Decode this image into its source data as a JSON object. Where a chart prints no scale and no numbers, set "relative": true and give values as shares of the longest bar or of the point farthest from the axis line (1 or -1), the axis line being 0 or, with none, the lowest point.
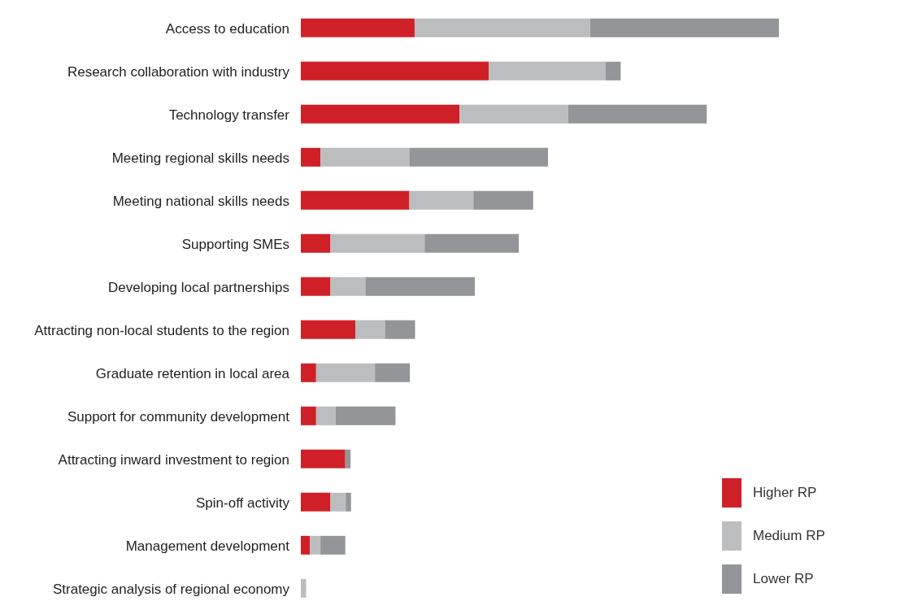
{
  "chart_data": {
    "type": "bar",
    "orientation": "horizontal",
    "stacked": true,
    "relative": true,
    "legend": "bottom right",
    "grid": false,
    "categories": [
      "Access to education",
      "Research collaboration with industry",
      "Technology transfer",
      "Meeting regional skills needs",
      "Meeting national skills needs",
      "Supporting SMEs",
      "Developing local partnerships",
      "Attracting non-local students to the region",
      "Graduate retention in local area",
      "Support for community development",
      "Attracting inward investment to region",
      "Spin-off activity",
      "Management development",
      "Strategic analysis of regional economy"
    ],
    "series": [
      {
        "name": "Higher RP",
        "color": "#d02027",
        "values": [
          0.238,
          0.393,
          0.332,
          0.041,
          0.227,
          0.062,
          0.062,
          0.114,
          0.032,
          0.032,
          0.093,
          0.062,
          0.019,
          0
        ]
      },
      {
        "name": "Medium RP",
        "color": "#bcbdbf",
        "values": [
          0.367,
          0.244,
          0.227,
          0.186,
          0.134,
          0.197,
          0.073,
          0.062,
          0.123,
          0.041,
          0,
          0.032,
          0.022,
          0.011
        ]
      },
      {
        "name": "Lower RP",
        "color": "#939598",
        "values": [
          0.395,
          0.032,
          0.29,
          0.29,
          0.125,
          0.197,
          0.229,
          0.063,
          0.073,
          0.125,
          0.011,
          0.011,
          0.052,
          0
        ]
      }
    ]
  }
}
